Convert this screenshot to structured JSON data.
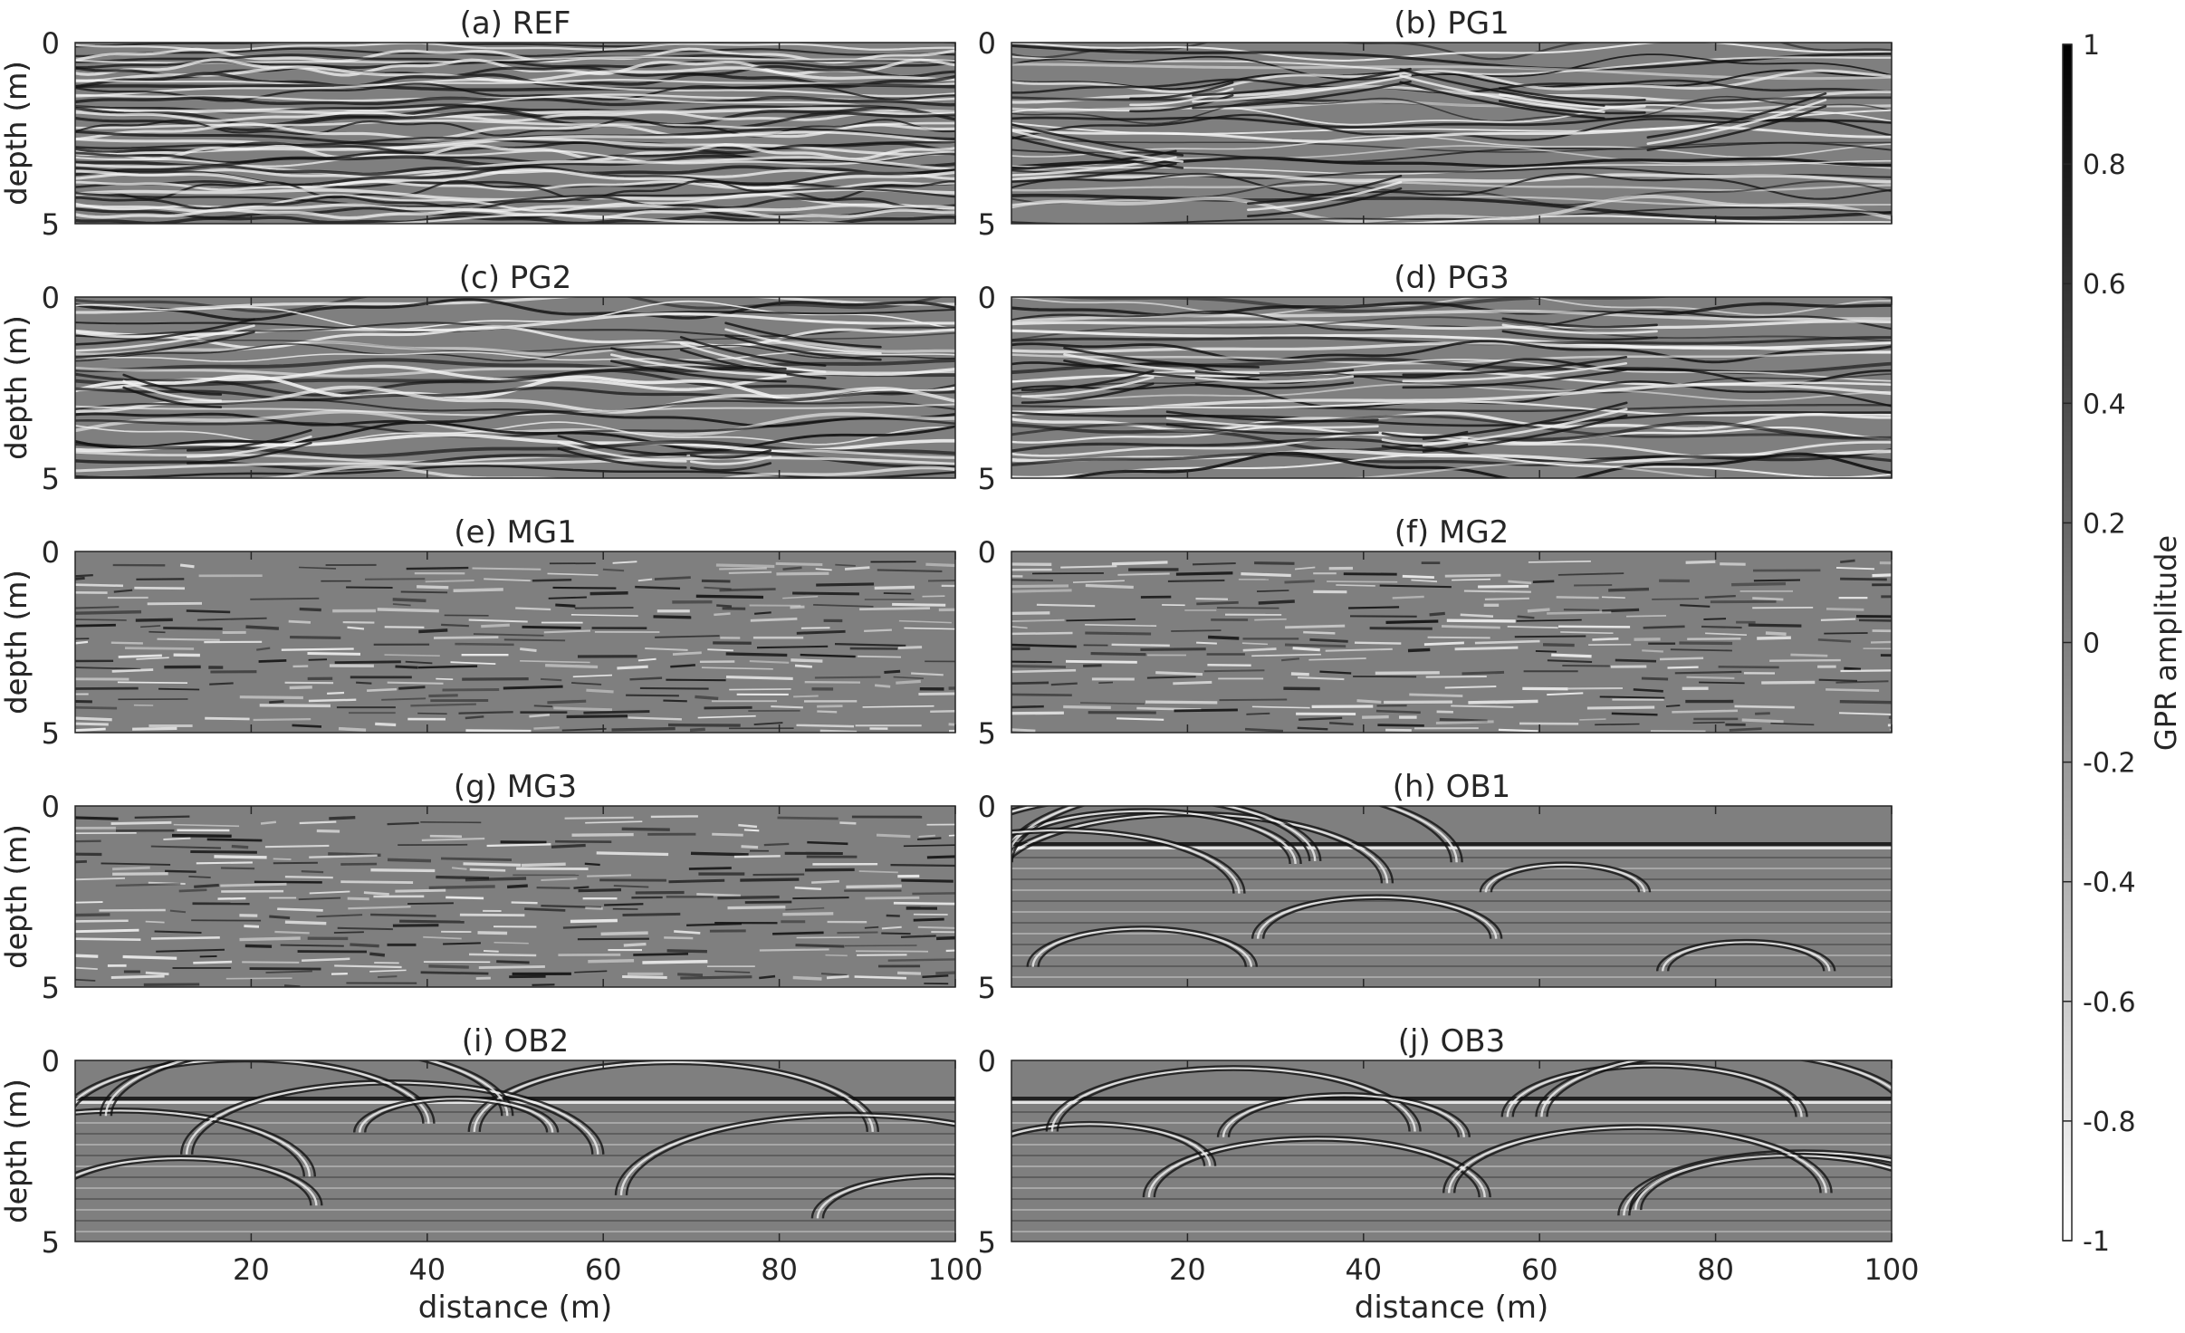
{
  "chart_data": {
    "type": "heatmap",
    "panels": [
      {
        "id": "a",
        "title": "(a) REF",
        "style": "ref"
      },
      {
        "id": "b",
        "title": "(b) PG1",
        "style": "pg"
      },
      {
        "id": "c",
        "title": "(c) PG2",
        "style": "pg"
      },
      {
        "id": "d",
        "title": "(d) PG3",
        "style": "pg"
      },
      {
        "id": "e",
        "title": "(e) MG1",
        "style": "mg"
      },
      {
        "id": "f",
        "title": "(f) MG2",
        "style": "mg"
      },
      {
        "id": "g",
        "title": "(g) MG3",
        "style": "mg"
      },
      {
        "id": "h",
        "title": "(h) OB1",
        "style": "ob"
      },
      {
        "id": "i",
        "title": "(i) OB2",
        "style": "ob"
      },
      {
        "id": "j",
        "title": "(j) OB3",
        "style": "ob"
      }
    ],
    "xlabel": "distance (m)",
    "ylabel": "depth (m)",
    "xlim": [
      0,
      100
    ],
    "ylim": [
      0,
      5
    ],
    "x_ticks": [
      20,
      40,
      60,
      80,
      100
    ],
    "y_ticks": [
      0,
      5
    ],
    "colorbar": {
      "label": "GPR amplitude",
      "range": [
        -1,
        1
      ],
      "ticks": [
        1,
        0.8,
        0.6,
        0.4,
        0.2,
        0,
        -0.2,
        -0.4,
        -0.6,
        -0.8,
        -1
      ],
      "colormap": "gray (white = -1, black = 1)"
    }
  },
  "colors": {
    "background": "#ffffff",
    "axis": "#262626",
    "neutral_gray": "#7f7f7f"
  }
}
